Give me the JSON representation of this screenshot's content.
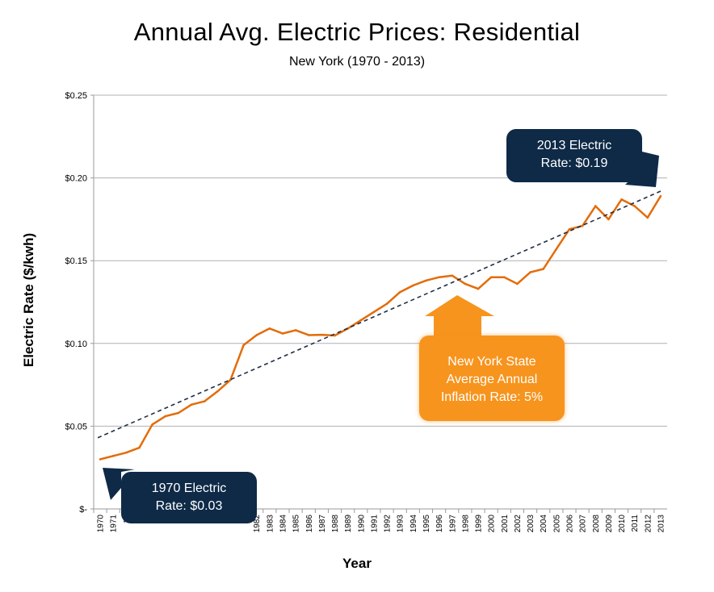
{
  "colors": {
    "line": "#e36c0a",
    "trend": "#1f2f44",
    "navy": "#0e2a47",
    "orange": "#f7941d",
    "grid": "#b0b0b0"
  },
  "chart_data": {
    "type": "line",
    "title": "Annual Avg. Electric Prices: Residential",
    "subtitle": "New York (1970 - 2013)",
    "xlabel": "Year",
    "ylabel": "Electric Rate ($/kwh)",
    "ylim": [
      0,
      0.25
    ],
    "grid": true,
    "y_ticks": [
      {
        "value": 0,
        "label": "$-"
      },
      {
        "value": 0.05,
        "label": "$0.05"
      },
      {
        "value": 0.1,
        "label": "$0.10"
      },
      {
        "value": 0.15,
        "label": "$0.15"
      },
      {
        "value": 0.2,
        "label": "$0.20"
      },
      {
        "value": 0.25,
        "label": "$0.25"
      }
    ],
    "x_tick_labels": [
      "1970",
      "1971",
      "19",
      "19",
      "19",
      "19",
      "19",
      "19",
      "19",
      "19",
      "19",
      "19",
      "1982",
      "1983",
      "1984",
      "1985",
      "1986",
      "1987",
      "1988",
      "1989",
      "1990",
      "1991",
      "1992",
      "1993",
      "1994",
      "1995",
      "1996",
      "1997",
      "1998",
      "1999",
      "2000",
      "2001",
      "2002",
      "2003",
      "2004",
      "2005",
      "2006",
      "2007",
      "2008",
      "2009",
      "2010",
      "2011",
      "2012",
      "2013"
    ],
    "series": [
      {
        "values": [
          0.03,
          0.032,
          0.034,
          0.037,
          0.051,
          0.056,
          0.058,
          0.063,
          0.065,
          0.071,
          0.078,
          0.099,
          0.105,
          0.109,
          0.106,
          0.108,
          0.105,
          0.1052,
          0.1048,
          0.109,
          0.114,
          0.119,
          0.124,
          0.131,
          0.135,
          0.138,
          0.14,
          0.141,
          0.136,
          0.133,
          0.14,
          0.14,
          0.136,
          0.143,
          0.145,
          0.157,
          0.169,
          0.171,
          0.183,
          0.175,
          0.187,
          0.183,
          0.176,
          0.189
        ],
        "type": "line"
      },
      {
        "type": "trendline",
        "values_start_end": [
          0.043,
          0.192
        ]
      }
    ],
    "annotations": [
      {
        "text_line1": "2013 Electric",
        "text_line2": "Rate: $0.19"
      },
      {
        "text_line1": "New York State",
        "text_line2": "Average Annual",
        "text_line3": "Inflation Rate: 5%"
      },
      {
        "text_line1": "1970 Electric",
        "text_line2": "Rate: $0.03"
      }
    ]
  }
}
